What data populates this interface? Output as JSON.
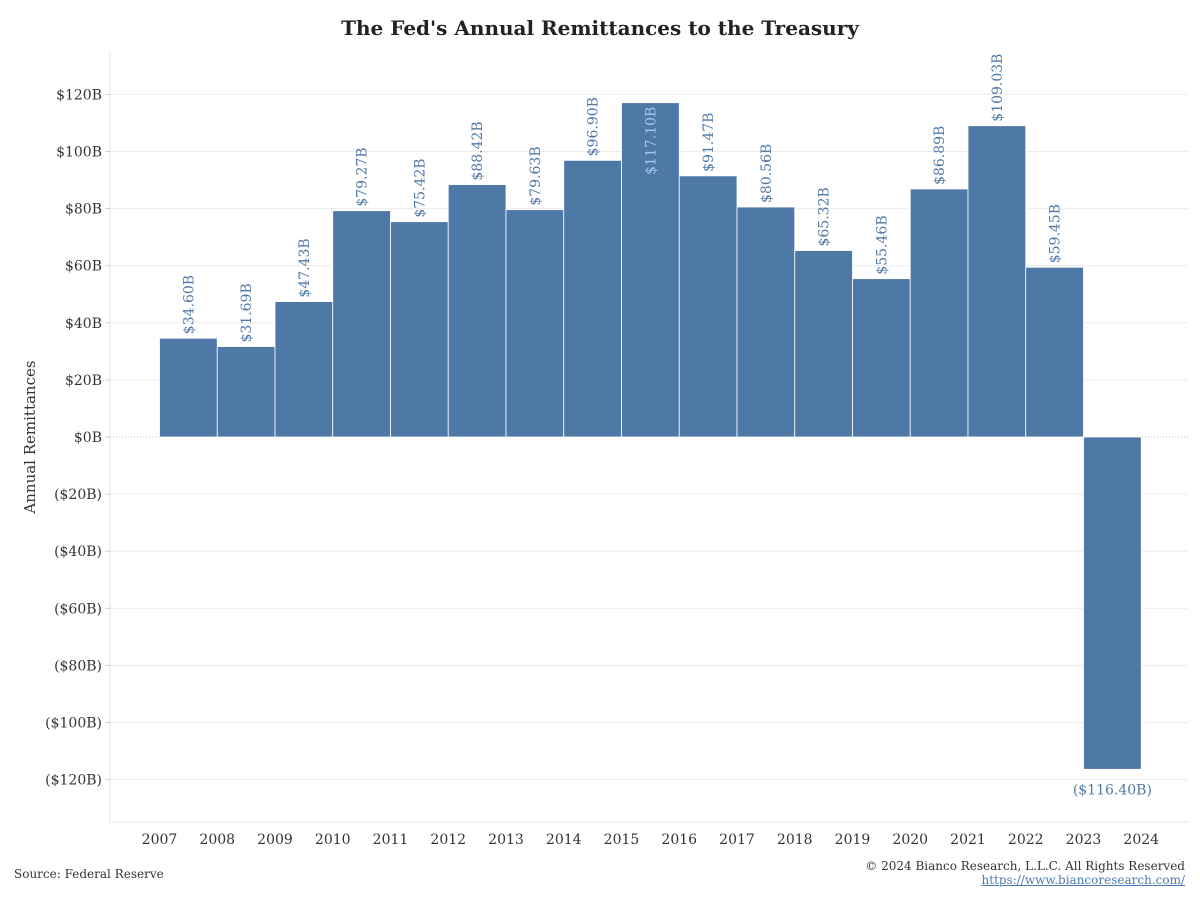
{
  "chart_data": {
    "type": "bar",
    "title": "The Fed's Annual Remittances to the Treasury",
    "ylabel": "Annual Remittances",
    "xlabel": "",
    "categories": [
      "2007",
      "2008",
      "2009",
      "2010",
      "2011",
      "2012",
      "2013",
      "2014",
      "2015",
      "2016",
      "2017",
      "2018",
      "2019",
      "2020",
      "2021",
      "2022",
      "2023"
    ],
    "values": [
      34.6,
      31.69,
      47.43,
      79.27,
      75.42,
      88.42,
      79.63,
      96.9,
      117.1,
      91.47,
      80.56,
      65.32,
      55.46,
      86.89,
      109.03,
      59.45,
      -116.4
    ],
    "data_labels": [
      "$34.60B",
      "$31.69B",
      "$47.43B",
      "$79.27B",
      "$75.42B",
      "$88.42B",
      "$79.63B",
      "$96.90B",
      "$117.10B",
      "$91.47B",
      "$80.56B",
      "$65.32B",
      "$55.46B",
      "$86.89B",
      "$109.03B",
      "$59.45B",
      "($116.40B)"
    ],
    "x_tick_labels": [
      "2007",
      "2008",
      "2009",
      "2010",
      "2011",
      "2012",
      "2013",
      "2014",
      "2015",
      "2016",
      "2017",
      "2018",
      "2019",
      "2020",
      "2021",
      "2022",
      "2023",
      "2024"
    ],
    "y_ticks": [
      120,
      100,
      80,
      60,
      40,
      20,
      0,
      -20,
      -40,
      -60,
      -80,
      -100,
      -120
    ],
    "y_tick_labels": [
      "$120B",
      "$100B",
      "$80B",
      "$60B",
      "$40B",
      "$20B",
      "$0B",
      "($20B)",
      "($40B)",
      "($60B)",
      "($80B)",
      "($100B)",
      "($120B)"
    ],
    "ylim": [
      -135,
      135
    ],
    "grid": true,
    "bar_color": "#4e79a7",
    "label_color": "#4e79a7",
    "inside_label_color": "#a8c6ec"
  },
  "footer": {
    "source": "Source: Federal Reserve",
    "copyright": "© 2024 Bianco Research, L.L.C. All Rights Reserved",
    "url": "https://www.biancoresearch.com/"
  }
}
